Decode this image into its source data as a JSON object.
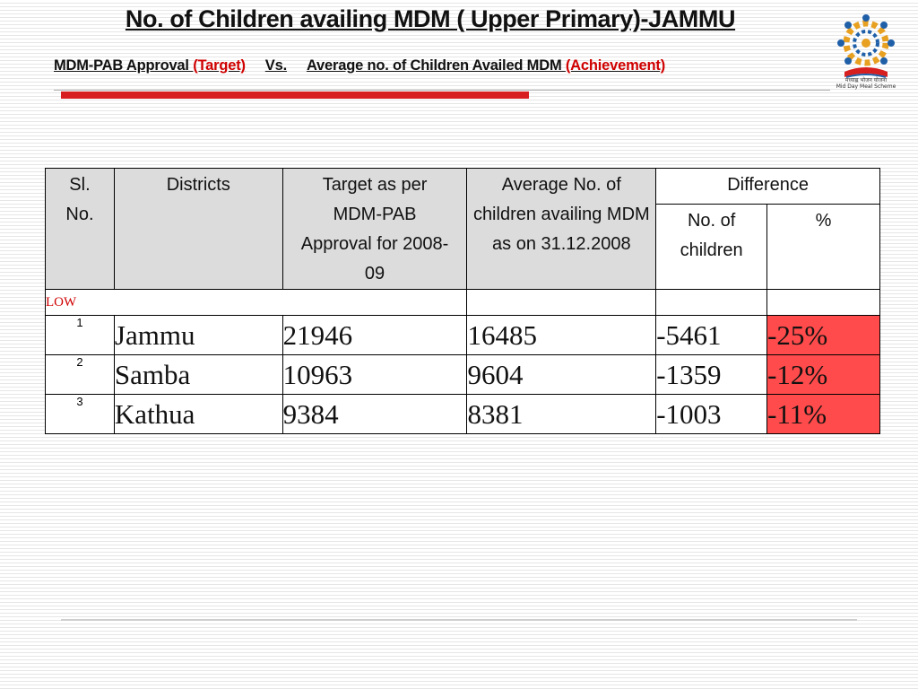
{
  "header": {
    "title": "No. of Children availing MDM ( Upper Primary)-JAMMU",
    "subtitle": {
      "part1": "MDM-PAB Approval ",
      "target": "(Target)",
      "vs": "Vs.",
      "part2": "Average no. of Children Availed MDM ",
      "achievement": "(Achievement)"
    }
  },
  "logo": {
    "caption_line1": "मध्याह्न भोजन योजना",
    "caption_line2": "Mid Day Meal Scheme"
  },
  "table": {
    "headers": {
      "sl": "Sl. No.",
      "district": "Districts",
      "target": "Target as per MDM-PAB Approval for 2008-09",
      "average": "Average No. of children availing MDM as on 31.12.2008",
      "difference": "Difference",
      "diff_children": "No. of children",
      "diff_pct": "%"
    },
    "group_label": "LOW",
    "rows": [
      {
        "sl": "1",
        "district": "Jammu",
        "target": "21946",
        "average": "16485",
        "diff": "-5461",
        "pct": "-25%"
      },
      {
        "sl": "2",
        "district": "Samba",
        "target": "10963",
        "average": "9604",
        "diff": "-1359",
        "pct": "-12%"
      },
      {
        "sl": "3",
        "district": "Kathua",
        "target": "9384",
        "average": "8381",
        "diff": "-1003",
        "pct": "-11%"
      }
    ]
  },
  "colors": {
    "accent_red": "#d81f1f",
    "highlight_cell": "#ff4b4b",
    "header_grey": "#dcdcdc"
  }
}
